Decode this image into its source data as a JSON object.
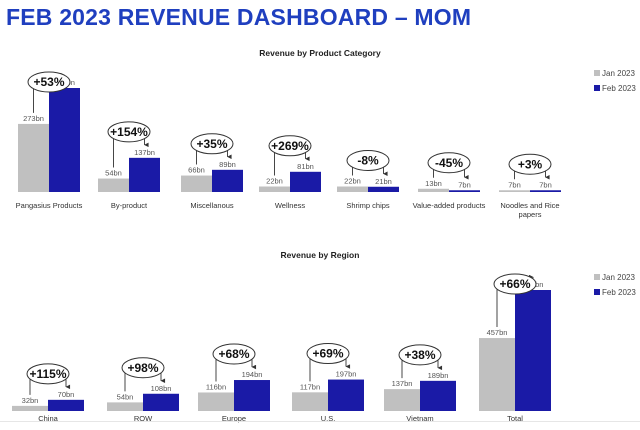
{
  "page_title": "FEB 2023 REVENUE DASHBOARD – MOM",
  "colors": {
    "jan": "#c0c0c0",
    "feb": "#1a1aa6",
    "title": "#1f3fbf"
  },
  "chart_data": [
    {
      "type": "bar",
      "title": "Revenue by Product Category",
      "categories": [
        "Pangasius Products",
        "By-product",
        "Miscellanous",
        "Wellness",
        "Shrimp chips",
        "Value-added products",
        "Noodles and Rice papers"
      ],
      "series": [
        {
          "name": "Jan 2023",
          "values": [
            273,
            54,
            66,
            22,
            22,
            13,
            7
          ],
          "labels": [
            "273bn",
            "54bn",
            "66bn",
            "22bn",
            "22bn",
            "13bn",
            "7bn"
          ]
        },
        {
          "name": "Feb 2023",
          "values": [
            417,
            137,
            89,
            81,
            21,
            7,
            7
          ],
          "labels": [
            "417bn",
            "137bn",
            "89bn",
            "81bn",
            "21bn",
            "7bn",
            "7bn"
          ]
        }
      ],
      "growth": [
        "+53%",
        "+154%",
        "+35%",
        "+269%",
        "-8%",
        "-45%",
        "+3%"
      ],
      "legend": [
        "Jan 2023",
        "Feb 2023"
      ],
      "legend_position": "right"
    },
    {
      "type": "bar",
      "title": "Revenue by Region",
      "categories": [
        "China",
        "ROW",
        "Europe",
        "U.S.",
        "Vietnam",
        "Total"
      ],
      "series": [
        {
          "name": "Jan 2023",
          "values": [
            32,
            54,
            116,
            117,
            137,
            457
          ],
          "labels": [
            "32bn",
            "54bn",
            "116bn",
            "117bn",
            "137bn",
            "457bn"
          ]
        },
        {
          "name": "Feb 2023",
          "values": [
            70,
            108,
            194,
            197,
            189,
            758
          ],
          "labels": [
            "70bn",
            "108bn",
            "194bn",
            "197bn",
            "189bn",
            "758bn"
          ]
        }
      ],
      "growth": [
        "+115%",
        "+98%",
        "+68%",
        "+69%",
        "+38%",
        "+66%"
      ],
      "legend": [
        "Jan 2023",
        "Feb 2023"
      ],
      "legend_position": "right"
    }
  ]
}
